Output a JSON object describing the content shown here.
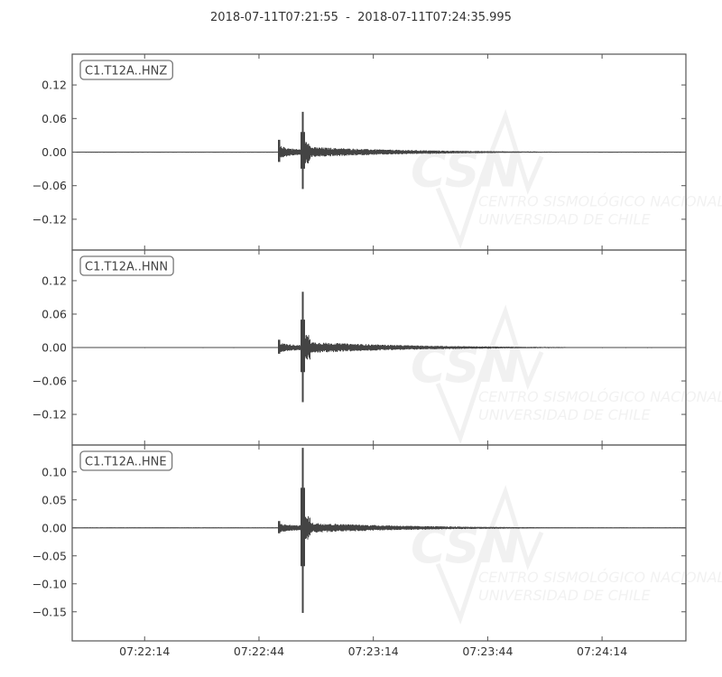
{
  "title": "2018-07-11T07:21:55  -  2018-07-11T07:24:35.995",
  "watermark": {
    "logo": "CSN",
    "line1": "CENTRO SISMOLÓGICO NACIONAL",
    "line2": "UNIVERSIDAD DE CHILE"
  },
  "chart_data": {
    "type": "line",
    "xlim": [
      "07:21:55",
      "07:24:35.995"
    ],
    "x_tick_labels": [
      "07:22:14",
      "07:22:44",
      "07:23:14",
      "07:23:44",
      "07:24:14"
    ],
    "x_tick_seconds": [
      19,
      49,
      79,
      109,
      139
    ],
    "color": "#444444",
    "panels": [
      {
        "label": "C1.T12A..HNZ",
        "ylim": [
          -0.175,
          0.175
        ],
        "y_ticks": [
          0.12,
          0.06,
          0.0,
          -0.06,
          -0.12
        ],
        "y_tick_labels": [
          "0.12",
          "0.06",
          "0.00",
          "−0.06",
          "−0.12"
        ],
        "onset_s": 54.3,
        "onset_amp": 0.022,
        "peak_s": 60.5,
        "peak_max": 0.072,
        "peak_min": -0.066,
        "coda_amp": 0.01,
        "noise": 0.0006
      },
      {
        "label": "C1.T12A..HNN",
        "ylim": [
          -0.175,
          0.175
        ],
        "y_ticks": [
          0.12,
          0.06,
          0.0,
          -0.06,
          -0.12
        ],
        "y_tick_labels": [
          "0.12",
          "0.06",
          "0.00",
          "−0.06",
          "−0.12"
        ],
        "onset_s": 54.3,
        "onset_amp": 0.014,
        "peak_s": 60.5,
        "peak_max": 0.1,
        "peak_min": -0.098,
        "coda_amp": 0.011,
        "noise": 0.0008
      },
      {
        "label": "C1.T12A..HNE",
        "ylim": [
          -0.202,
          0.148
        ],
        "y_ticks": [
          0.1,
          0.05,
          0.0,
          -0.05,
          -0.1,
          -0.15
        ],
        "y_tick_labels": [
          "0.10",
          "0.05",
          "0.00",
          "−0.05",
          "−0.10",
          "−0.15"
        ],
        "onset_s": 54.3,
        "onset_amp": 0.012,
        "peak_s": 60.5,
        "peak_max": 0.143,
        "peak_min": -0.152,
        "coda_amp": 0.01,
        "noise": 0.0008
      }
    ]
  }
}
